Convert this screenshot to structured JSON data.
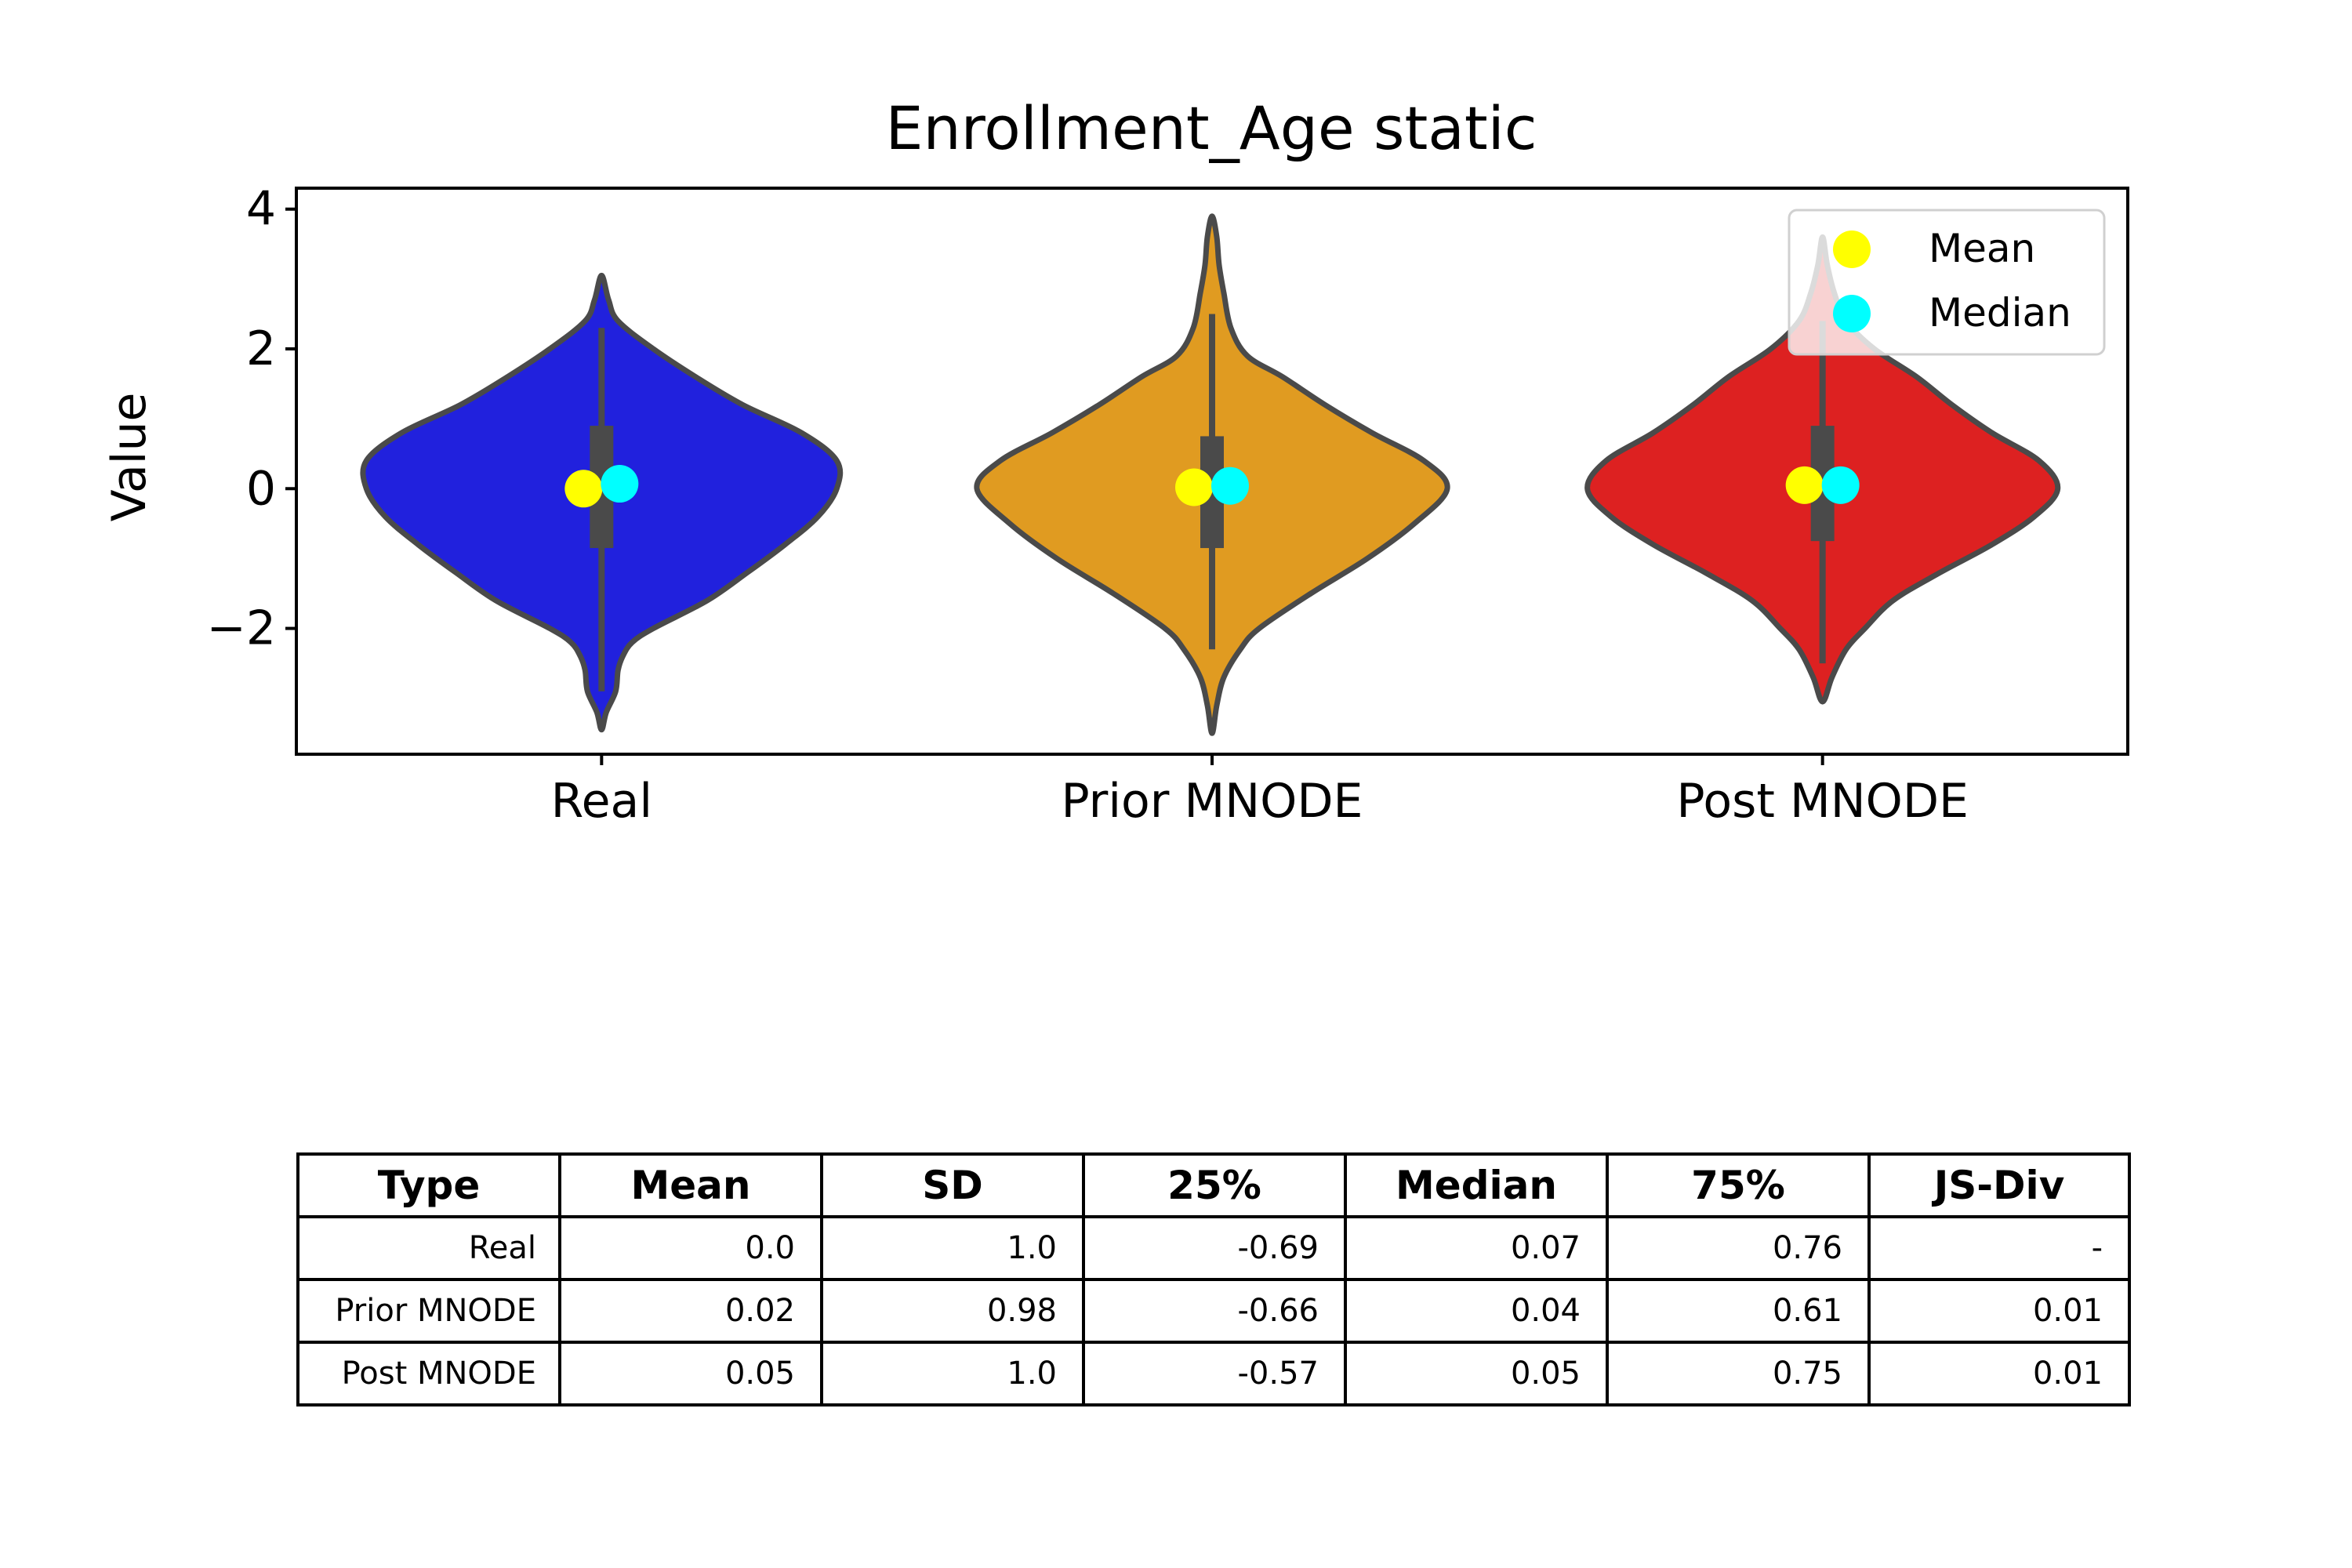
{
  "chart_data": {
    "type": "violin",
    "title": "Enrollment_Age static",
    "ylabel": "Value",
    "xlabel": "",
    "ylim": [
      -3.8,
      4.3
    ],
    "yticks": [
      4,
      2,
      0,
      -2
    ],
    "ytick_labels": [
      "4",
      "2",
      "0",
      "−2"
    ],
    "categories": [
      "Real",
      "Prior MNODE",
      "Post MNODE"
    ],
    "colors": {
      "Real": "#2121dd",
      "Prior MNODE": "#e09b21",
      "Post MNODE": "#dd2121",
      "outline": "#4a4a4a",
      "mean_marker": "#ffff00",
      "median_marker": "#00ffff"
    },
    "legend": {
      "placement": "top-right",
      "entries": [
        "Mean",
        "Median"
      ]
    },
    "grid": false,
    "violins": [
      {
        "name": "Real",
        "mean": 0.0,
        "median": 0.07,
        "q1": -0.69,
        "q3": 0.76,
        "box_low": -0.85,
        "box_high": 0.9,
        "whisker_low": -2.9,
        "whisker_high": 2.3,
        "density": [
          [
            -3.45,
            0.0
          ],
          [
            -3.2,
            0.02
          ],
          [
            -2.9,
            0.06
          ],
          [
            -2.6,
            0.07
          ],
          [
            -2.4,
            0.09
          ],
          [
            -2.2,
            0.13
          ],
          [
            -2.0,
            0.22
          ],
          [
            -1.6,
            0.45
          ],
          [
            -1.2,
            0.62
          ],
          [
            -0.8,
            0.78
          ],
          [
            -0.4,
            0.92
          ],
          [
            0.0,
            1.0
          ],
          [
            0.4,
            1.0
          ],
          [
            0.8,
            0.85
          ],
          [
            1.2,
            0.6
          ],
          [
            1.6,
            0.4
          ],
          [
            2.0,
            0.22
          ],
          [
            2.4,
            0.07
          ],
          [
            2.7,
            0.03
          ],
          [
            3.05,
            0.0
          ]
        ]
      },
      {
        "name": "Prior MNODE",
        "mean": 0.02,
        "median": 0.04,
        "q1": -0.66,
        "q3": 0.61,
        "box_low": -0.85,
        "box_high": 0.75,
        "whisker_low": -2.3,
        "whisker_high": 2.5,
        "density": [
          [
            -3.5,
            0.0
          ],
          [
            -3.1,
            0.02
          ],
          [
            -2.7,
            0.05
          ],
          [
            -2.3,
            0.12
          ],
          [
            -2.0,
            0.2
          ],
          [
            -1.5,
            0.42
          ],
          [
            -1.0,
            0.66
          ],
          [
            -0.5,
            0.86
          ],
          [
            0.0,
            1.0
          ],
          [
            0.4,
            0.9
          ],
          [
            0.8,
            0.68
          ],
          [
            1.2,
            0.48
          ],
          [
            1.6,
            0.3
          ],
          [
            1.9,
            0.15
          ],
          [
            2.3,
            0.08
          ],
          [
            2.8,
            0.05
          ],
          [
            3.2,
            0.03
          ],
          [
            3.6,
            0.02
          ],
          [
            3.9,
            0.0
          ]
        ]
      },
      {
        "name": "Post MNODE",
        "mean": 0.05,
        "median": 0.05,
        "q1": -0.57,
        "q3": 0.75,
        "box_low": -0.75,
        "box_high": 0.9,
        "whisker_low": -2.5,
        "whisker_high": 2.4,
        "density": [
          [
            -3.05,
            0.0
          ],
          [
            -2.7,
            0.04
          ],
          [
            -2.3,
            0.1
          ],
          [
            -2.0,
            0.18
          ],
          [
            -1.6,
            0.3
          ],
          [
            -1.2,
            0.5
          ],
          [
            -0.8,
            0.72
          ],
          [
            -0.4,
            0.9
          ],
          [
            0.0,
            1.0
          ],
          [
            0.4,
            0.92
          ],
          [
            0.8,
            0.72
          ],
          [
            1.2,
            0.55
          ],
          [
            1.6,
            0.4
          ],
          [
            2.0,
            0.22
          ],
          [
            2.4,
            0.1
          ],
          [
            2.8,
            0.05
          ],
          [
            3.2,
            0.02
          ],
          [
            3.6,
            0.0
          ]
        ]
      }
    ]
  },
  "table": {
    "headers": [
      "Type",
      "Mean",
      "SD",
      "25%",
      "Median",
      "75%",
      "JS-Div"
    ],
    "rows": [
      [
        "Real",
        "0.0",
        "1.0",
        "-0.69",
        "0.07",
        "0.76",
        "-"
      ],
      [
        "Prior MNODE",
        "0.02",
        "0.98",
        "-0.66",
        "0.04",
        "0.61",
        "0.01"
      ],
      [
        "Post MNODE",
        "0.05",
        "1.0",
        "-0.57",
        "0.05",
        "0.75",
        "0.01"
      ]
    ]
  }
}
